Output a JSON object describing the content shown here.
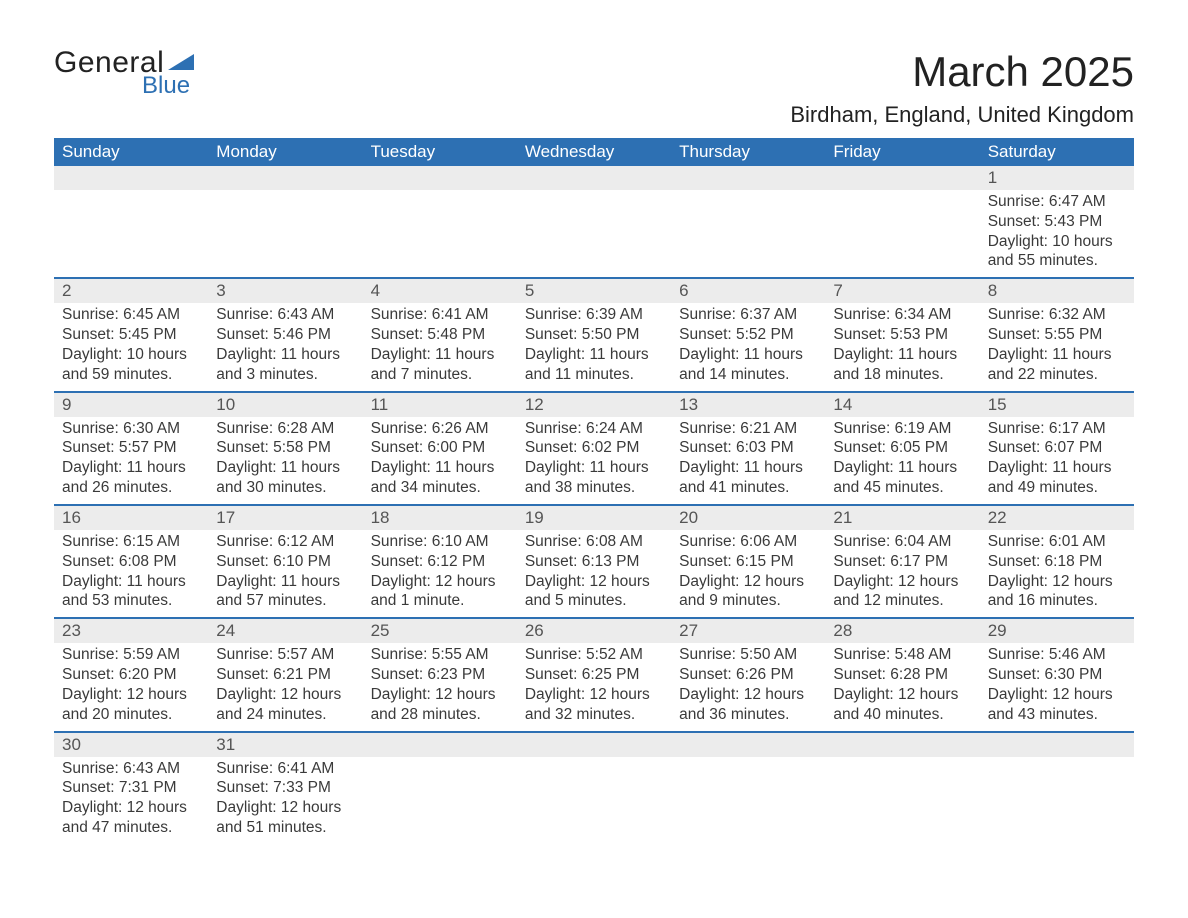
{
  "brand": {
    "line1": "General",
    "line2": "Blue",
    "accent_color": "#2d70b3"
  },
  "title": "March 2025",
  "location": "Birdham, England, United Kingdom",
  "header_bg": "#2d70b3",
  "header_fg": "#ffffff",
  "daynum_bg": "#ececec",
  "border_color": "#2d70b3",
  "text_color": "#3a3a3a",
  "page_bg": "#ffffff",
  "day_names": [
    "Sunday",
    "Monday",
    "Tuesday",
    "Wednesday",
    "Thursday",
    "Friday",
    "Saturday"
  ],
  "weeks": [
    [
      {
        "n": "",
        "sunrise": "",
        "sunset": "",
        "daylight1": "",
        "daylight2": ""
      },
      {
        "n": "",
        "sunrise": "",
        "sunset": "",
        "daylight1": "",
        "daylight2": ""
      },
      {
        "n": "",
        "sunrise": "",
        "sunset": "",
        "daylight1": "",
        "daylight2": ""
      },
      {
        "n": "",
        "sunrise": "",
        "sunset": "",
        "daylight1": "",
        "daylight2": ""
      },
      {
        "n": "",
        "sunrise": "",
        "sunset": "",
        "daylight1": "",
        "daylight2": ""
      },
      {
        "n": "",
        "sunrise": "",
        "sunset": "",
        "daylight1": "",
        "daylight2": ""
      },
      {
        "n": "1",
        "sunrise": "Sunrise: 6:47 AM",
        "sunset": "Sunset: 5:43 PM",
        "daylight1": "Daylight: 10 hours",
        "daylight2": "and 55 minutes."
      }
    ],
    [
      {
        "n": "2",
        "sunrise": "Sunrise: 6:45 AM",
        "sunset": "Sunset: 5:45 PM",
        "daylight1": "Daylight: 10 hours",
        "daylight2": "and 59 minutes."
      },
      {
        "n": "3",
        "sunrise": "Sunrise: 6:43 AM",
        "sunset": "Sunset: 5:46 PM",
        "daylight1": "Daylight: 11 hours",
        "daylight2": "and 3 minutes."
      },
      {
        "n": "4",
        "sunrise": "Sunrise: 6:41 AM",
        "sunset": "Sunset: 5:48 PM",
        "daylight1": "Daylight: 11 hours",
        "daylight2": "and 7 minutes."
      },
      {
        "n": "5",
        "sunrise": "Sunrise: 6:39 AM",
        "sunset": "Sunset: 5:50 PM",
        "daylight1": "Daylight: 11 hours",
        "daylight2": "and 11 minutes."
      },
      {
        "n": "6",
        "sunrise": "Sunrise: 6:37 AM",
        "sunset": "Sunset: 5:52 PM",
        "daylight1": "Daylight: 11 hours",
        "daylight2": "and 14 minutes."
      },
      {
        "n": "7",
        "sunrise": "Sunrise: 6:34 AM",
        "sunset": "Sunset: 5:53 PM",
        "daylight1": "Daylight: 11 hours",
        "daylight2": "and 18 minutes."
      },
      {
        "n": "8",
        "sunrise": "Sunrise: 6:32 AM",
        "sunset": "Sunset: 5:55 PM",
        "daylight1": "Daylight: 11 hours",
        "daylight2": "and 22 minutes."
      }
    ],
    [
      {
        "n": "9",
        "sunrise": "Sunrise: 6:30 AM",
        "sunset": "Sunset: 5:57 PM",
        "daylight1": "Daylight: 11 hours",
        "daylight2": "and 26 minutes."
      },
      {
        "n": "10",
        "sunrise": "Sunrise: 6:28 AM",
        "sunset": "Sunset: 5:58 PM",
        "daylight1": "Daylight: 11 hours",
        "daylight2": "and 30 minutes."
      },
      {
        "n": "11",
        "sunrise": "Sunrise: 6:26 AM",
        "sunset": "Sunset: 6:00 PM",
        "daylight1": "Daylight: 11 hours",
        "daylight2": "and 34 minutes."
      },
      {
        "n": "12",
        "sunrise": "Sunrise: 6:24 AM",
        "sunset": "Sunset: 6:02 PM",
        "daylight1": "Daylight: 11 hours",
        "daylight2": "and 38 minutes."
      },
      {
        "n": "13",
        "sunrise": "Sunrise: 6:21 AM",
        "sunset": "Sunset: 6:03 PM",
        "daylight1": "Daylight: 11 hours",
        "daylight2": "and 41 minutes."
      },
      {
        "n": "14",
        "sunrise": "Sunrise: 6:19 AM",
        "sunset": "Sunset: 6:05 PM",
        "daylight1": "Daylight: 11 hours",
        "daylight2": "and 45 minutes."
      },
      {
        "n": "15",
        "sunrise": "Sunrise: 6:17 AM",
        "sunset": "Sunset: 6:07 PM",
        "daylight1": "Daylight: 11 hours",
        "daylight2": "and 49 minutes."
      }
    ],
    [
      {
        "n": "16",
        "sunrise": "Sunrise: 6:15 AM",
        "sunset": "Sunset: 6:08 PM",
        "daylight1": "Daylight: 11 hours",
        "daylight2": "and 53 minutes."
      },
      {
        "n": "17",
        "sunrise": "Sunrise: 6:12 AM",
        "sunset": "Sunset: 6:10 PM",
        "daylight1": "Daylight: 11 hours",
        "daylight2": "and 57 minutes."
      },
      {
        "n": "18",
        "sunrise": "Sunrise: 6:10 AM",
        "sunset": "Sunset: 6:12 PM",
        "daylight1": "Daylight: 12 hours",
        "daylight2": "and 1 minute."
      },
      {
        "n": "19",
        "sunrise": "Sunrise: 6:08 AM",
        "sunset": "Sunset: 6:13 PM",
        "daylight1": "Daylight: 12 hours",
        "daylight2": "and 5 minutes."
      },
      {
        "n": "20",
        "sunrise": "Sunrise: 6:06 AM",
        "sunset": "Sunset: 6:15 PM",
        "daylight1": "Daylight: 12 hours",
        "daylight2": "and 9 minutes."
      },
      {
        "n": "21",
        "sunrise": "Sunrise: 6:04 AM",
        "sunset": "Sunset: 6:17 PM",
        "daylight1": "Daylight: 12 hours",
        "daylight2": "and 12 minutes."
      },
      {
        "n": "22",
        "sunrise": "Sunrise: 6:01 AM",
        "sunset": "Sunset: 6:18 PM",
        "daylight1": "Daylight: 12 hours",
        "daylight2": "and 16 minutes."
      }
    ],
    [
      {
        "n": "23",
        "sunrise": "Sunrise: 5:59 AM",
        "sunset": "Sunset: 6:20 PM",
        "daylight1": "Daylight: 12 hours",
        "daylight2": "and 20 minutes."
      },
      {
        "n": "24",
        "sunrise": "Sunrise: 5:57 AM",
        "sunset": "Sunset: 6:21 PM",
        "daylight1": "Daylight: 12 hours",
        "daylight2": "and 24 minutes."
      },
      {
        "n": "25",
        "sunrise": "Sunrise: 5:55 AM",
        "sunset": "Sunset: 6:23 PM",
        "daylight1": "Daylight: 12 hours",
        "daylight2": "and 28 minutes."
      },
      {
        "n": "26",
        "sunrise": "Sunrise: 5:52 AM",
        "sunset": "Sunset: 6:25 PM",
        "daylight1": "Daylight: 12 hours",
        "daylight2": "and 32 minutes."
      },
      {
        "n": "27",
        "sunrise": "Sunrise: 5:50 AM",
        "sunset": "Sunset: 6:26 PM",
        "daylight1": "Daylight: 12 hours",
        "daylight2": "and 36 minutes."
      },
      {
        "n": "28",
        "sunrise": "Sunrise: 5:48 AM",
        "sunset": "Sunset: 6:28 PM",
        "daylight1": "Daylight: 12 hours",
        "daylight2": "and 40 minutes."
      },
      {
        "n": "29",
        "sunrise": "Sunrise: 5:46 AM",
        "sunset": "Sunset: 6:30 PM",
        "daylight1": "Daylight: 12 hours",
        "daylight2": "and 43 minutes."
      }
    ],
    [
      {
        "n": "30",
        "sunrise": "Sunrise: 6:43 AM",
        "sunset": "Sunset: 7:31 PM",
        "daylight1": "Daylight: 12 hours",
        "daylight2": "and 47 minutes."
      },
      {
        "n": "31",
        "sunrise": "Sunrise: 6:41 AM",
        "sunset": "Sunset: 7:33 PM",
        "daylight1": "Daylight: 12 hours",
        "daylight2": "and 51 minutes."
      },
      {
        "n": "",
        "sunrise": "",
        "sunset": "",
        "daylight1": "",
        "daylight2": ""
      },
      {
        "n": "",
        "sunrise": "",
        "sunset": "",
        "daylight1": "",
        "daylight2": ""
      },
      {
        "n": "",
        "sunrise": "",
        "sunset": "",
        "daylight1": "",
        "daylight2": ""
      },
      {
        "n": "",
        "sunrise": "",
        "sunset": "",
        "daylight1": "",
        "daylight2": ""
      },
      {
        "n": "",
        "sunrise": "",
        "sunset": "",
        "daylight1": "",
        "daylight2": ""
      }
    ]
  ]
}
